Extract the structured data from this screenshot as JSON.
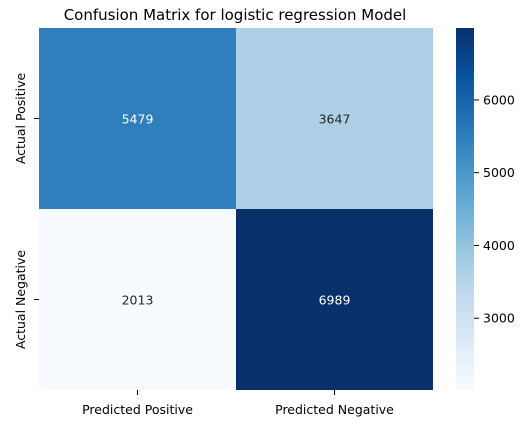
{
  "chart_data": {
    "type": "heatmap",
    "title": "Confusion Matrix for logistic regression Model",
    "x_categories": [
      "Predicted Positive",
      "Predicted Negative"
    ],
    "y_categories": [
      "Actual Positive",
      "Actual Negative"
    ],
    "values": [
      [
        5479,
        3647
      ],
      [
        2013,
        6989
      ]
    ],
    "colorbar": {
      "min": 2013,
      "max": 6989,
      "ticks": [
        3000,
        4000,
        5000,
        6000
      ]
    },
    "colormap": [
      "#f7fbff",
      "#deebf7",
      "#c6dbef",
      "#9ecae1",
      "#6baed6",
      "#4292c6",
      "#2171b5",
      "#08519c",
      "#08306b"
    ]
  }
}
